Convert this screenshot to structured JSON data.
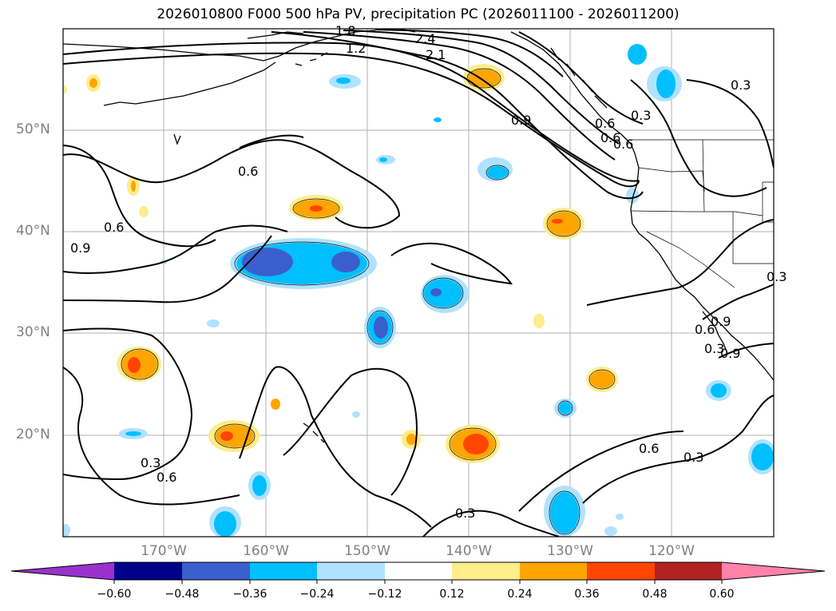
{
  "title": "2026010800 F000 500 hPa PV, precipitation PC (2026011100 - 2026011200)",
  "lat_labels": [
    "50°N",
    "40°N",
    "30°N",
    "20°N"
  ],
  "lon_labels": [
    "170°W",
    "160°W",
    "150°W",
    "140°W",
    "130°W",
    "120°W"
  ],
  "contour_labels": [
    "2.4",
    "2.1",
    "1.2",
    "1.8",
    "0.9",
    "0.6",
    "0.3",
    "0.6",
    "0.3",
    "0.6",
    "0.9",
    "0.6",
    "0.3",
    "0.6",
    "0.3",
    "0.3",
    "0.6",
    "0.9",
    "0.6",
    "0.3",
    "0.3",
    "0.9",
    "0.6"
  ],
  "colorbar": {
    "ticks": [
      "−0.60",
      "−0.48",
      "−0.36",
      "−0.24",
      "−0.12",
      "0.12",
      "0.24",
      "0.36",
      "0.48",
      "0.60"
    ],
    "colors": [
      "#9932cc",
      "#00008b",
      "#3a5fcd",
      "#00bfff",
      "#b0e2ff",
      "#ffffff",
      "#ffec8b",
      "#ffa500",
      "#ff4500",
      "#b22222",
      "#ff82ab"
    ]
  }
}
